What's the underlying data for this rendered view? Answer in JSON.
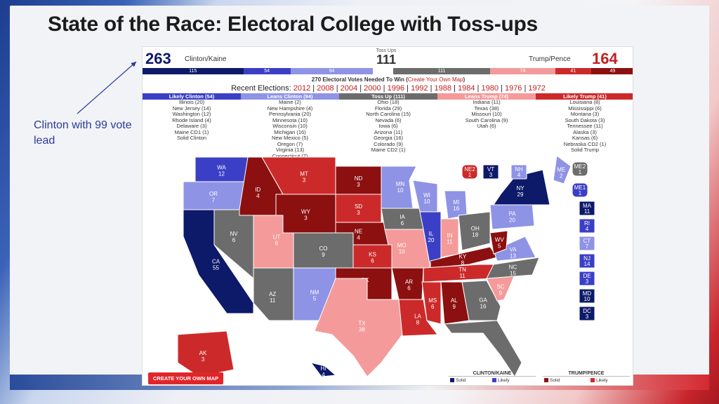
{
  "title": "State of the Race: Electoral College with Toss-ups",
  "annotation": "Clinton with 99 vote lead",
  "clinton": {
    "total": "263",
    "label": "Clinton/Kaine"
  },
  "trump": {
    "total": "164",
    "label": "Trump/Pence"
  },
  "tossups": {
    "label": "Toss Ups",
    "total": "111"
  },
  "bar_segments": [
    {
      "value": "115",
      "color": "#0d1a6a",
      "flex": 115
    },
    {
      "value": "54",
      "color": "#3b3fc6",
      "flex": 54
    },
    {
      "value": "94",
      "color": "#8e93e6",
      "flex": 94
    },
    {
      "value": "",
      "color": "#ffffff",
      "flex": 23
    },
    {
      "value": "111",
      "color": "#6c6c6c",
      "flex": 111
    },
    {
      "value": "74",
      "color": "#f49a9a",
      "flex": 74
    },
    {
      "value": "41",
      "color": "#cc2a2a",
      "flex": 41
    },
    {
      "value": "49",
      "color": "#8c1010",
      "flex": 49
    }
  ],
  "needed_text": "270 Electoral Votes Needed To Win (",
  "needed_link": "Create Your Own Map",
  "needed_close": ")",
  "recent_label": "Recent Elections:",
  "recent_years": [
    "2012",
    "2008",
    "2004",
    "2000",
    "1996",
    "1992",
    "1988",
    "1984",
    "1980",
    "1976",
    "1972"
  ],
  "categories": [
    {
      "header": "Likely Clinton (54)",
      "color": "#3b3fc6",
      "items": [
        "Illinois (20)",
        "New Jersey (14)",
        "Washington (12)",
        "Rhode Island (4)",
        "Delaware (3)",
        "Maine CD1 (1)",
        "Solid Clinton"
      ]
    },
    {
      "header": "Leans Clinton (94)",
      "color": "#8e93e6",
      "items": [
        "Maine (2)",
        "New Hampshire (4)",
        "Pennsylvania (20)",
        "Minnesota (10)",
        "Wisconsin (10)",
        "Michigan (16)",
        "New Mexico (5)",
        "Oregon (7)",
        "Virginia (13)",
        "Connecticut (7)"
      ]
    },
    {
      "header": "Toss Up (111)",
      "color": "#6c6c6c",
      "items": [
        "Ohio (18)",
        "Florida (29)",
        "North Carolina (15)",
        "Nevada (6)",
        "Iowa (6)",
        "Arizona (11)",
        "Georgia (16)",
        "Colorado (9)",
        "Maine CD2 (1)"
      ]
    },
    {
      "header": "Leans Trump (74)",
      "color": "#f49a9a",
      "items": [
        "Indiana (11)",
        "Texas (38)",
        "Missouri (10)",
        "South Carolina (9)",
        "Utah (6)"
      ]
    },
    {
      "header": "Likely Trump (41)",
      "color": "#cc2a2a",
      "items": [
        "Louisiana (8)",
        "Mississippi (6)",
        "Montana (3)",
        "South Dakota (3)",
        "Tennessee (11)",
        "Alaska (3)",
        "Kansas (6)",
        "Nebraska CD2 (1)",
        "Solid Trump"
      ]
    }
  ],
  "colors": {
    "solid_clinton": "#0d1a6a",
    "likely_clinton": "#3b3fc6",
    "leans_clinton": "#8e93e6",
    "tossup": "#6c6c6c",
    "leans_trump": "#f49a9a",
    "likely_trump": "#cc2a2a",
    "solid_trump": "#8c1010"
  },
  "states": [
    {
      "abbr": "WA",
      "ev": "12",
      "c": "likely_clinton"
    },
    {
      "abbr": "OR",
      "ev": "7",
      "c": "leans_clinton"
    },
    {
      "abbr": "CA",
      "ev": "55",
      "c": "solid_clinton"
    },
    {
      "abbr": "NV",
      "ev": "6",
      "c": "tossup"
    },
    {
      "abbr": "ID",
      "ev": "4",
      "c": "solid_trump"
    },
    {
      "abbr": "MT",
      "ev": "3",
      "c": "likely_trump"
    },
    {
      "abbr": "WY",
      "ev": "3",
      "c": "solid_trump"
    },
    {
      "abbr": "UT",
      "ev": "6",
      "c": "leans_trump"
    },
    {
      "abbr": "AZ",
      "ev": "11",
      "c": "tossup"
    },
    {
      "abbr": "CO",
      "ev": "9",
      "c": "tossup"
    },
    {
      "abbr": "NM",
      "ev": "5",
      "c": "leans_clinton"
    },
    {
      "abbr": "ND",
      "ev": "3",
      "c": "solid_trump"
    },
    {
      "abbr": "SD",
      "ev": "3",
      "c": "likely_trump"
    },
    {
      "abbr": "NE",
      "ev": "4",
      "c": "solid_trump"
    },
    {
      "abbr": "KS",
      "ev": "6",
      "c": "likely_trump"
    },
    {
      "abbr": "OK",
      "ev": "7",
      "c": "solid_trump"
    },
    {
      "abbr": "TX",
      "ev": "38",
      "c": "leans_trump"
    },
    {
      "abbr": "MN",
      "ev": "10",
      "c": "leans_clinton"
    },
    {
      "abbr": "IA",
      "ev": "6",
      "c": "tossup"
    },
    {
      "abbr": "MO",
      "ev": "10",
      "c": "leans_trump"
    },
    {
      "abbr": "AR",
      "ev": "6",
      "c": "solid_trump"
    },
    {
      "abbr": "LA",
      "ev": "8",
      "c": "likely_trump"
    },
    {
      "abbr": "WI",
      "ev": "10",
      "c": "leans_clinton"
    },
    {
      "abbr": "IL",
      "ev": "20",
      "c": "likely_clinton"
    },
    {
      "abbr": "MI",
      "ev": "16",
      "c": "leans_clinton"
    },
    {
      "abbr": "IN",
      "ev": "11",
      "c": "leans_trump"
    },
    {
      "abbr": "OH",
      "ev": "18",
      "c": "tossup"
    },
    {
      "abbr": "KY",
      "ev": "8",
      "c": "solid_trump"
    },
    {
      "abbr": "TN",
      "ev": "11",
      "c": "likely_trump"
    },
    {
      "abbr": "MS",
      "ev": "6",
      "c": "likely_trump"
    },
    {
      "abbr": "AL",
      "ev": "9",
      "c": "solid_trump"
    },
    {
      "abbr": "GA",
      "ev": "16",
      "c": "tossup"
    },
    {
      "abbr": "FL",
      "ev": "29",
      "c": "tossup"
    },
    {
      "abbr": "SC",
      "ev": "9",
      "c": "leans_trump"
    },
    {
      "abbr": "NC",
      "ev": "15",
      "c": "tossup"
    },
    {
      "abbr": "VA",
      "ev": "13",
      "c": "leans_clinton"
    },
    {
      "abbr": "WV",
      "ev": "5",
      "c": "solid_trump"
    },
    {
      "abbr": "PA",
      "ev": "20",
      "c": "leans_clinton"
    },
    {
      "abbr": "NY",
      "ev": "29",
      "c": "solid_clinton"
    },
    {
      "abbr": "ME",
      "ev": "2",
      "c": "leans_clinton"
    },
    {
      "abbr": "AK",
      "ev": "3",
      "c": "likely_trump"
    },
    {
      "abbr": "HI",
      "ev": "4",
      "c": "solid_clinton"
    }
  ],
  "boxes": [
    {
      "abbr": "NE2",
      "ev": "1",
      "c": "likely_trump"
    },
    {
      "abbr": "VT",
      "ev": "3",
      "c": "solid_clinton"
    },
    {
      "abbr": "NH",
      "ev": "4",
      "c": "leans_clinton"
    },
    {
      "abbr": "ME2",
      "ev": "1",
      "c": "tossup"
    },
    {
      "abbr": "ME1",
      "ev": "1",
      "c": "likely_clinton"
    },
    {
      "abbr": "MA",
      "ev": "11",
      "c": "solid_clinton"
    },
    {
      "abbr": "RI",
      "ev": "4",
      "c": "likely_clinton"
    },
    {
      "abbr": "CT",
      "ev": "7",
      "c": "leans_clinton"
    },
    {
      "abbr": "NJ",
      "ev": "14",
      "c": "likely_clinton"
    },
    {
      "abbr": "DE",
      "ev": "3",
      "c": "likely_clinton"
    },
    {
      "abbr": "MD",
      "ev": "10",
      "c": "solid_clinton"
    },
    {
      "abbr": "DC",
      "ev": "3",
      "c": "solid_clinton"
    }
  ],
  "cta": "CREATE YOUR OWN MAP",
  "legend": {
    "left_title": "CLINTON/KAINE",
    "right_title": "TRUMP/PENCE",
    "solid": "Solid",
    "likely": "Likely"
  }
}
